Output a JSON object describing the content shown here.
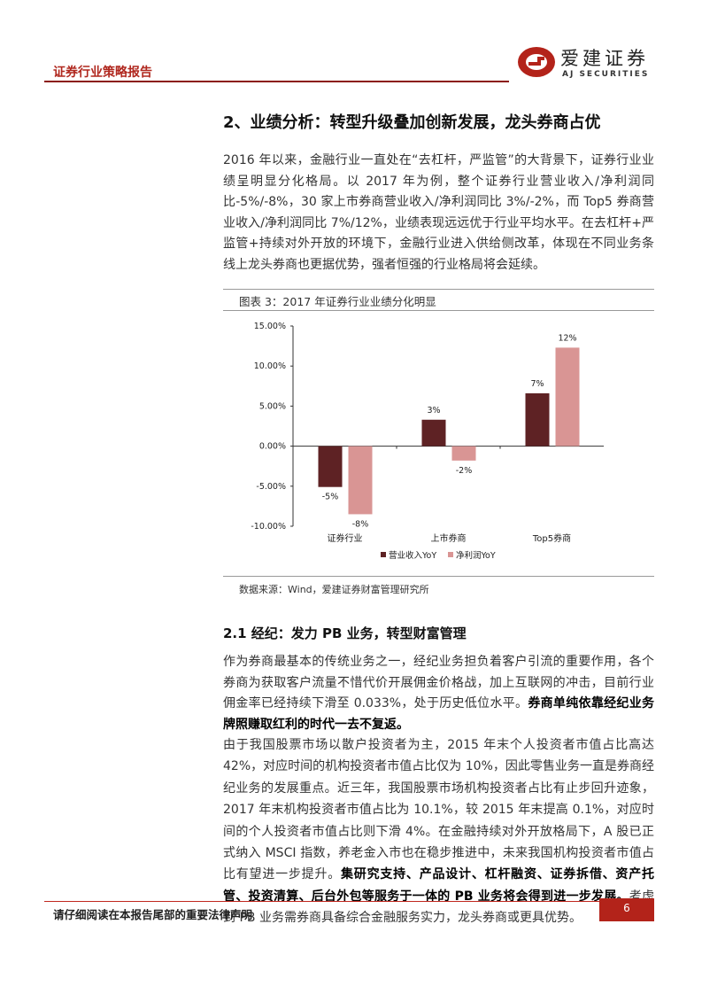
{
  "header": {
    "report_type": "证券行业策略报告",
    "logo_cn": "爱建证券",
    "logo_en": "AJ SECURITIES",
    "brand_color": "#b0271e"
  },
  "section": {
    "title": "2、业绩分析：转型升级叠加创新发展，龙头券商占优",
    "paragraph": "2016 年以来，金融行业一直处在“去杠杆，严监管”的大背景下，证券行业业绩呈明显分化格局。以 2017 年为例，整个证券行业营业收入/净利润同比-5%/-8%，30 家上市券商营业收入/净利润同比 3%/-2%，而 Top5 券商营业收入/净利润同比 7%/12%，业绩表现远远优于行业平均水平。在去杠杆+严监管+持续对外开放的环境下，金融行业进入供给侧改革，体现在不同业务条线上龙头券商也更据优势，强者恒强的行业格局将会延续。"
  },
  "figure": {
    "title": "图表 3：2017 年证券行业业绩分化明显",
    "source": "数据来源：Wind，爱建证券财富管理研究所"
  },
  "chart_data": {
    "type": "bar",
    "categories": [
      "证券行业",
      "上市券商",
      "Top5券商"
    ],
    "series": [
      {
        "name": "营业收入YoY",
        "values": [
          -5.1,
          3.3,
          6.6
        ],
        "labels": [
          "-5%",
          "3%",
          "7%"
        ],
        "color": "#5e2224"
      },
      {
        "name": "净利润YoY",
        "values": [
          -8.5,
          -1.8,
          12.3
        ],
        "labels": [
          "-8%",
          "-2%",
          "12%"
        ],
        "color": "#d99594"
      }
    ],
    "yticks": [
      "15.00%",
      "10.00%",
      "5.00%",
      "0.00%",
      "-5.00%",
      "-10.00%"
    ],
    "ylim": [
      -10,
      15
    ],
    "legend": "bottom"
  },
  "subsection": {
    "title": "2.1 经纪：发力 PB 业务，转型财富管理",
    "p2": [
      {
        "t": "作为券商最基本的传统业务之一，经纪业务担负着客户引流的重要作用，各个券商为获取客户流量不惜代价开展佣金价格战，加上互联网的冲击，目前行业佣金率已经持续下滑至 0.033%，处于历史低位水平。"
      },
      {
        "t": "券商单纯依靠经纪业务牌照赚取红利的时代一去不复返。",
        "b": true
      }
    ],
    "p3": [
      {
        "t": "由于我国股票市场以散户投资者为主，2015 年末个人投资者市值占比高达 42%，对应时间的机构投资者市值占比仅为 10%，因此零售业务一直是券商经纪业务的发展重点。近三年，我国股票市场机构投资者占比有止步回升迹象，2017 年末机构投资者市值占比为 10.1%，较 2015 年末提高 0.1%，对应时间的个人投资者市值占比则下滑 4%。在金融持续对外开放格局下，A 股已正式纳入 MSCI 指数，养老金入市也在稳步推进中，未来我国机构投资者市值占比有望进一步提升。"
      },
      {
        "t": "集研究支持、产品设计、杠杆融资、证券拆借、资产托管、投资清算、后台外包等服务于一体的 PB 业务将会得到进一步发展。",
        "b": true
      },
      {
        "t": "考虑到 PB 业务需券商具备综合金融服务实力，龙头券商或更具优势。"
      }
    ]
  },
  "footer": {
    "disclaimer": "请仔细阅读在本报告尾部的重要法律声明",
    "page": "6"
  }
}
